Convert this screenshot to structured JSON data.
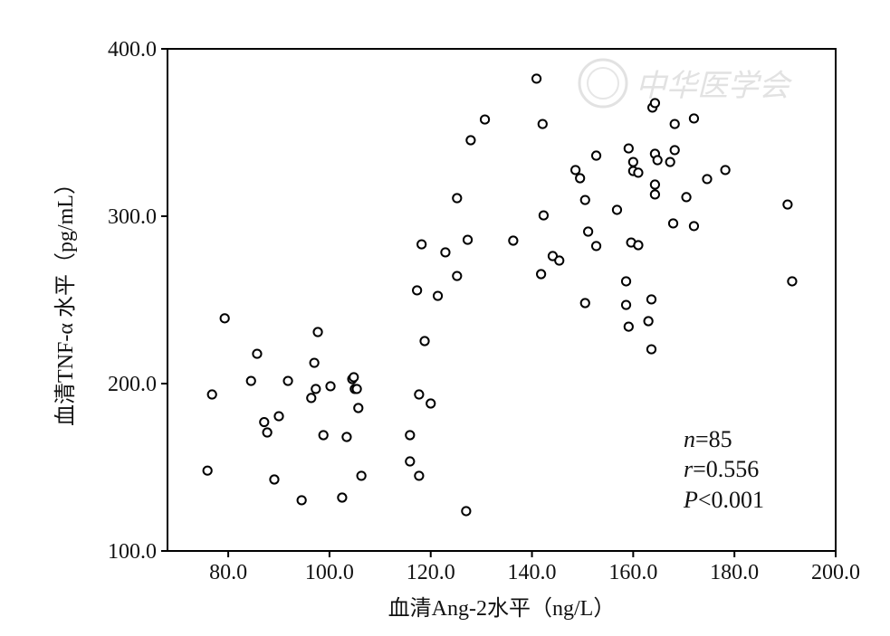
{
  "chart_data": {
    "type": "scatter",
    "title": "",
    "xlabel": "血清Ang-2水平（ng/L）",
    "ylabel": "血清TNF-α 水平（pg/mL）",
    "xlim": [
      68,
      200
    ],
    "ylim": [
      100,
      400
    ],
    "xticks": [
      80,
      100,
      120,
      140,
      160,
      180,
      200
    ],
    "xtick_labels": [
      "80.0",
      "100.0",
      "120.0",
      "140.0",
      "160.0",
      "180.0",
      "200.0"
    ],
    "yticks": [
      100,
      200,
      300,
      400
    ],
    "ytick_labels": [
      "100.0",
      "200.0",
      "300.0",
      "400.0"
    ],
    "grid": false,
    "marker": "open-circle",
    "marker_color": "#000000",
    "annotations": {
      "n_label": "n",
      "n_value": "=85",
      "r_label": "r",
      "r_value": "=0.556",
      "p_label": "P",
      "p_value": "<0.001"
    },
    "watermark": "中华医学会",
    "points": [
      [
        75.9,
        148
      ],
      [
        76.8,
        193.5
      ],
      [
        79.3,
        239
      ],
      [
        84.5,
        201.6
      ],
      [
        85.7,
        217.8
      ],
      [
        87.1,
        177
      ],
      [
        87.7,
        170.8
      ],
      [
        90,
        180.5
      ],
      [
        89.1,
        142.7
      ],
      [
        91.8,
        201.6
      ],
      [
        94.5,
        130.3
      ],
      [
        97,
        212.4
      ],
      [
        97.7,
        230.8
      ],
      [
        96.4,
        191.4
      ],
      [
        97.3,
        196.8
      ],
      [
        98.8,
        169.2
      ],
      [
        100.2,
        198.4
      ],
      [
        102.5,
        131.9
      ],
      [
        103.4,
        168.1
      ],
      [
        104.5,
        202.7
      ],
      [
        104.8,
        203.8
      ],
      [
        105,
        196.8
      ],
      [
        105.4,
        196.8
      ],
      [
        105.7,
        185.4
      ],
      [
        106.3,
        144.9
      ],
      [
        115.9,
        169.2
      ],
      [
        115.9,
        153.5
      ],
      [
        117.3,
        255.7
      ],
      [
        117.7,
        193.5
      ],
      [
        117.7,
        144.9
      ],
      [
        118.2,
        283.2
      ],
      [
        118.8,
        225.4
      ],
      [
        120,
        188.1
      ],
      [
        121.4,
        252.4
      ],
      [
        122.9,
        278.4
      ],
      [
        125.2,
        264.3
      ],
      [
        125.2,
        310.8
      ],
      [
        127.3,
        285.9
      ],
      [
        127,
        123.8
      ],
      [
        127.9,
        345.4
      ],
      [
        130.7,
        357.8
      ],
      [
        136.3,
        285.4
      ],
      [
        140.9,
        382.2
      ],
      [
        142.1,
        355.1
      ],
      [
        141.8,
        265.4
      ],
      [
        142.3,
        300.5
      ],
      [
        144.1,
        276.2
      ],
      [
        145.4,
        273.5
      ],
      [
        148.6,
        327.6
      ],
      [
        149.5,
        322.7
      ],
      [
        150.5,
        309.7
      ],
      [
        150.5,
        248.1
      ],
      [
        151.1,
        290.8
      ],
      [
        152.7,
        282.2
      ],
      [
        152.7,
        336.2
      ],
      [
        156.8,
        303.8
      ],
      [
        158.6,
        261.1
      ],
      [
        158.6,
        247
      ],
      [
        159.1,
        234
      ],
      [
        159.1,
        340.5
      ],
      [
        159.6,
        284.3
      ],
      [
        160,
        332.4
      ],
      [
        160,
        327
      ],
      [
        161,
        326
      ],
      [
        161,
        282.7
      ],
      [
        163,
        237.3
      ],
      [
        163.6,
        250.3
      ],
      [
        163.6,
        220.5
      ],
      [
        163.8,
        364.9
      ],
      [
        164.3,
        367.6
      ],
      [
        164.3,
        337.3
      ],
      [
        164.3,
        318.9
      ],
      [
        164.3,
        313
      ],
      [
        164.8,
        333.5
      ],
      [
        167.3,
        332.4
      ],
      [
        167.9,
        295.7
      ],
      [
        168.2,
        355.1
      ],
      [
        168.2,
        339.5
      ],
      [
        170.5,
        311.4
      ],
      [
        172,
        358.4
      ],
      [
        172,
        294.1
      ],
      [
        174.6,
        322.2
      ],
      [
        178.2,
        327.6
      ],
      [
        190.5,
        307
      ],
      [
        191.4,
        261.1
      ]
    ]
  }
}
